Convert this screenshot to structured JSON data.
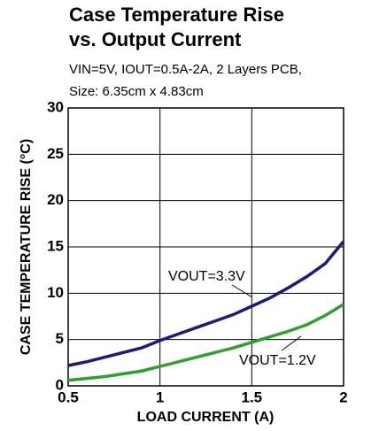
{
  "chart_data": {
    "type": "line",
    "title": [
      "Case Temperature Rise",
      "vs. Output Current"
    ],
    "subtitle": [
      "VIN=5V, IOUT=0.5A-2A, 2 Layers PCB,",
      "Size: 6.35cm x 4.83cm"
    ],
    "x_label": "LOAD CURRENT (A)",
    "y_label": "CASE TEMPERATURE RISE (°C)",
    "x": [
      0.5,
      0.6,
      0.7,
      0.8,
      0.9,
      1.0,
      1.1,
      1.2,
      1.3,
      1.4,
      1.5,
      1.6,
      1.7,
      1.8,
      1.9,
      2.0
    ],
    "series": [
      {
        "name": "VOUT=3.3V",
        "color": "#1a1a80",
        "values": [
          2.2,
          2.6,
          3.1,
          3.6,
          4.1,
          4.9,
          5.6,
          6.3,
          7.0,
          7.7,
          8.6,
          9.5,
          10.6,
          11.8,
          13.2,
          15.6
        ]
      },
      {
        "name": "VOUT=1.2V",
        "color": "#2ea02e",
        "values": [
          0.6,
          0.8,
          1.0,
          1.3,
          1.6,
          2.1,
          2.6,
          3.1,
          3.6,
          4.1,
          4.7,
          5.3,
          5.9,
          6.6,
          7.6,
          8.8
        ]
      }
    ],
    "xlim": [
      0.5,
      2
    ],
    "xticks": [
      0.5,
      1,
      1.5,
      2
    ],
    "ylim": [
      0,
      30
    ],
    "yticks": [
      0,
      5,
      10,
      15,
      20,
      25,
      30
    ],
    "grid": true
  }
}
